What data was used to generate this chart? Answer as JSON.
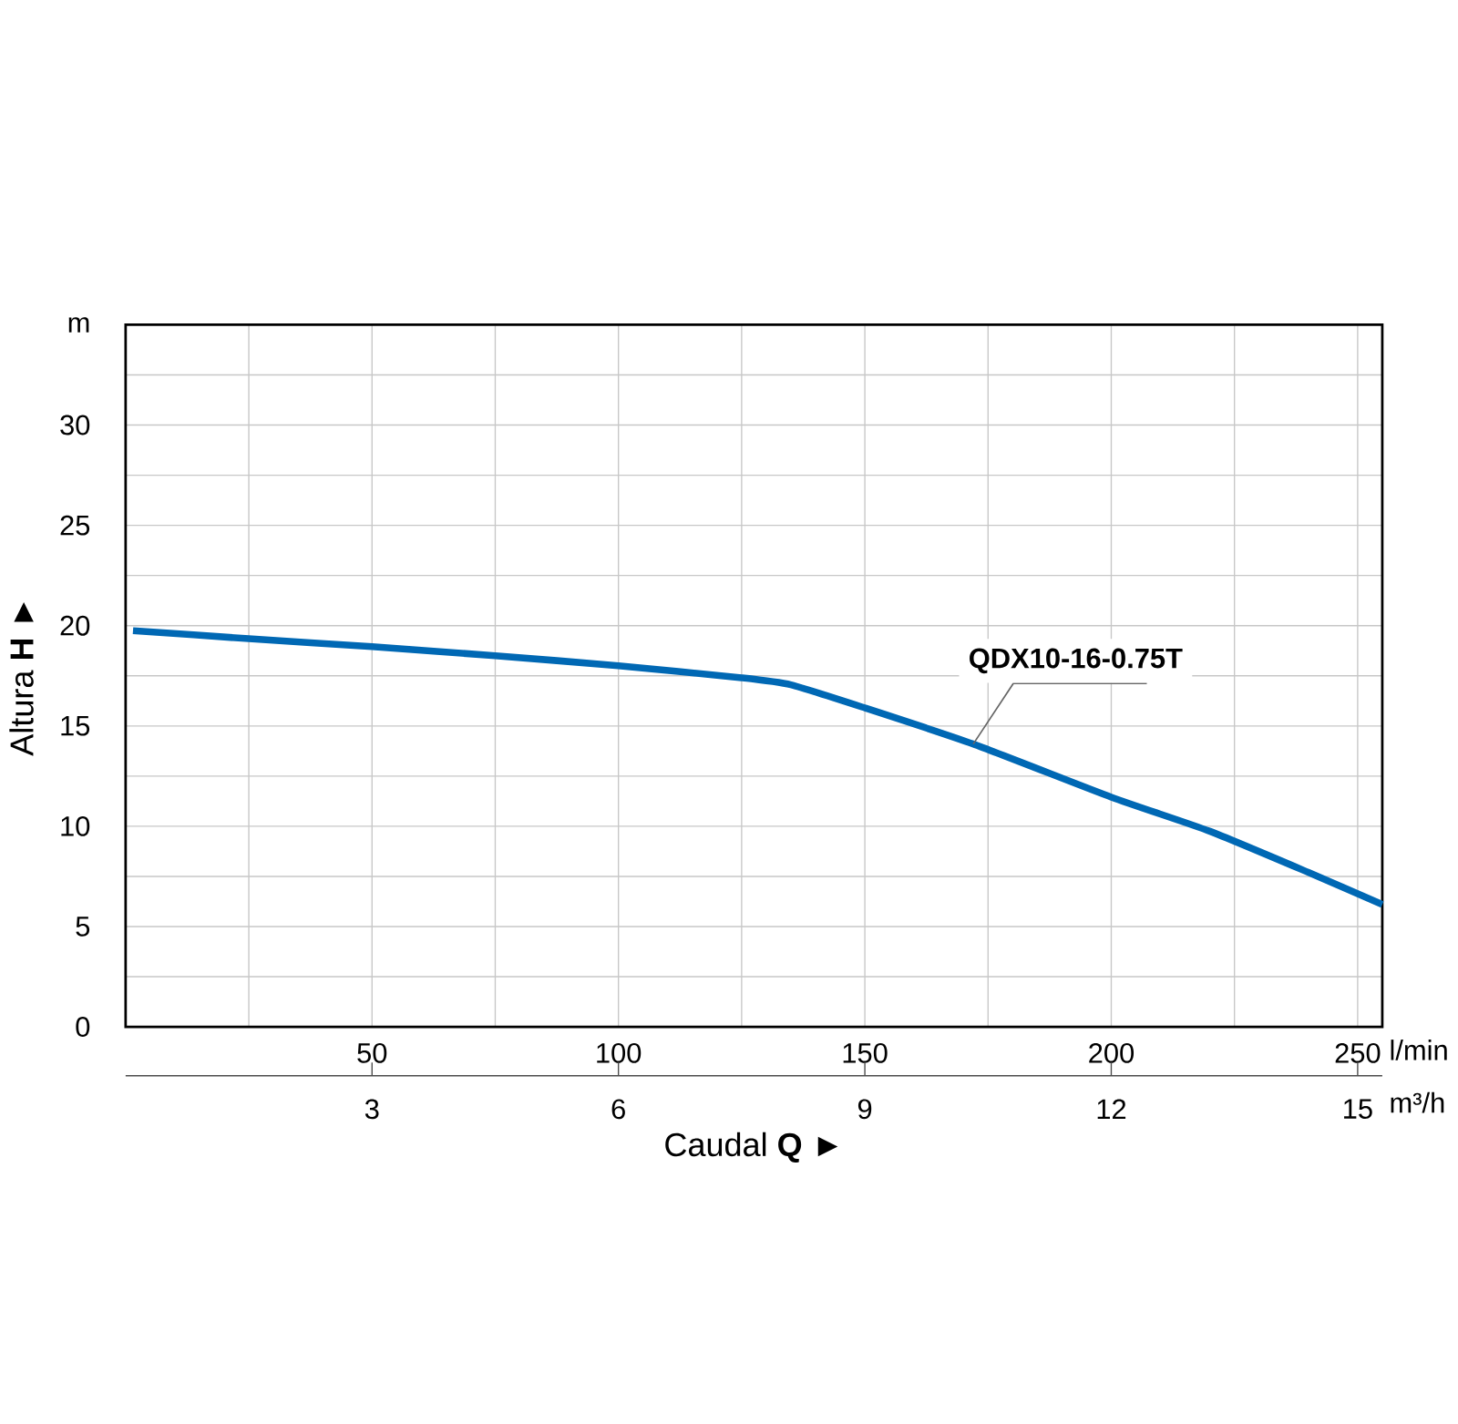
{
  "chart_data": {
    "type": "line",
    "xlabel": "Caudal **Q** ►",
    "ylabel": "Altura **H** ►",
    "x": [
      1.5,
      25,
      50,
      75,
      100,
      125,
      135,
      150,
      172,
      200,
      220,
      240,
      255
    ],
    "series": [
      {
        "name": "QDX10-16-0.75T",
        "color": "#0068b4",
        "values": [
          19.75,
          19.35,
          18.95,
          18.5,
          18.0,
          17.4,
          17.05,
          15.9,
          14.1,
          11.45,
          9.75,
          7.7,
          6.1
        ]
      }
    ],
    "xlim": [
      0,
      255
    ],
    "ylim": [
      0,
      35
    ],
    "xticks": [
      {
        "value": 25,
        "label": null
      },
      50,
      {
        "value": 75,
        "label": null
      },
      100,
      {
        "value": 125,
        "label": null
      },
      150,
      {
        "value": 175,
        "label": null
      },
      200,
      {
        "value": 225,
        "label": null
      },
      250
    ],
    "yticks": [
      0,
      {
        "value": 2.5,
        "label": null
      },
      5,
      {
        "value": 7.5,
        "label": null
      },
      10,
      {
        "value": 12.5,
        "label": null
      },
      15,
      {
        "value": 17.5,
        "label": null
      },
      20,
      {
        "value": 22.5,
        "label": null
      },
      25,
      {
        "value": 27.5,
        "label": null
      },
      30,
      {
        "value": 32.5,
        "label": null
      },
      {
        "value": 35,
        "label": "m"
      }
    ],
    "x2lim": [
      0,
      15.3
    ],
    "x2ticks": [
      3,
      6,
      9,
      12,
      15
    ],
    "annotations": [
      "l/min",
      "m³/h"
    ],
    "grid": true,
    "line_style": "solid",
    "marker": "none"
  }
}
